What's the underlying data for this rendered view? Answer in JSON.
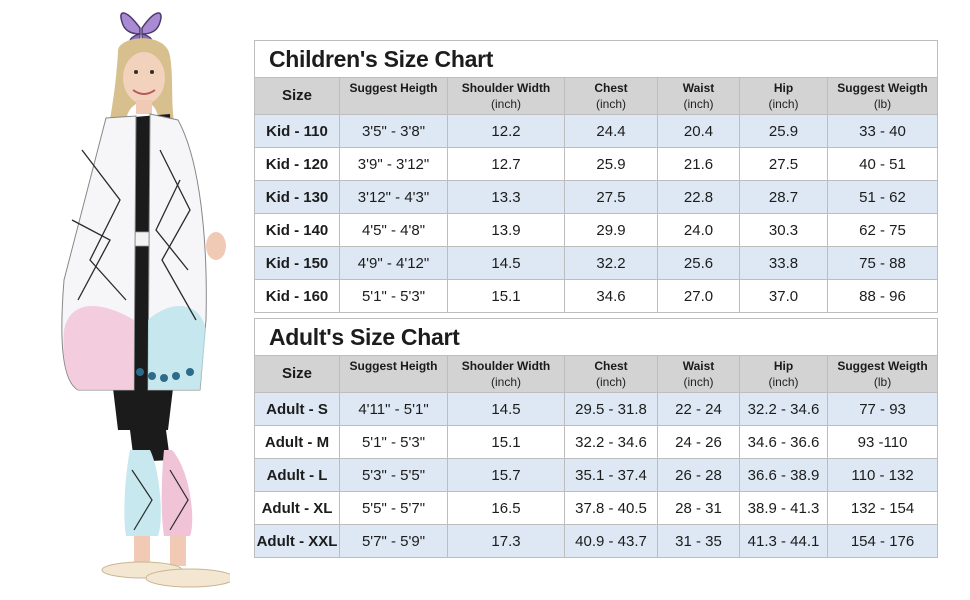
{
  "children": {
    "title": "Children's Size Chart",
    "headers": [
      {
        "label": "Size",
        "unit": ""
      },
      {
        "label": "Suggest Heigth",
        "unit": ""
      },
      {
        "label": "Shoulder Width",
        "unit": "(inch)"
      },
      {
        "label": "Chest",
        "unit": "(inch)"
      },
      {
        "label": "Waist",
        "unit": "(inch)"
      },
      {
        "label": "Hip",
        "unit": "(inch)"
      },
      {
        "label": "Suggest Weigth",
        "unit": "(lb)"
      }
    ],
    "rows": [
      [
        "Kid - 110",
        "3'5\" - 3'8\"",
        "12.2",
        "24.4",
        "20.4",
        "25.9",
        "33 - 40"
      ],
      [
        "Kid - 120",
        "3'9\" - 3'12\"",
        "12.7",
        "25.9",
        "21.6",
        "27.5",
        "40 - 51"
      ],
      [
        "Kid - 130",
        "3'12\" - 4'3\"",
        "13.3",
        "27.5",
        "22.8",
        "28.7",
        "51 - 62"
      ],
      [
        "Kid - 140",
        "4'5\" - 4'8\"",
        "13.9",
        "29.9",
        "24.0",
        "30.3",
        "62 - 75"
      ],
      [
        "Kid - 150",
        "4'9\" - 4'12\"",
        "14.5",
        "32.2",
        "25.6",
        "33.8",
        "75 - 88"
      ],
      [
        "Kid - 160",
        "5'1\" - 5'3\"",
        "15.1",
        "34.6",
        "27.0",
        "37.0",
        "88 - 96"
      ]
    ]
  },
  "adults": {
    "title": "Adult's Size Chart",
    "headers": [
      {
        "label": "Size",
        "unit": ""
      },
      {
        "label": "Suggest Heigth",
        "unit": ""
      },
      {
        "label": "Shoulder Width",
        "unit": "(inch)"
      },
      {
        "label": "Chest",
        "unit": "(inch)"
      },
      {
        "label": "Waist",
        "unit": "(inch)"
      },
      {
        "label": "Hip",
        "unit": "(inch)"
      },
      {
        "label": "Suggest Weigth",
        "unit": "(lb)"
      }
    ],
    "rows": [
      [
        "Adult - S",
        "4'11\" - 5'1\"",
        "14.5",
        "29.5 - 31.8",
        "22 - 24",
        "32.2 - 34.6",
        "77 - 93"
      ],
      [
        "Adult - M",
        "5'1\" - 5'3\"",
        "15.1",
        "32.2 - 34.6",
        "24 - 26",
        "34.6 - 36.6",
        "93 -110"
      ],
      [
        "Adult - L",
        "5'3\" - 5'5\"",
        "15.7",
        "35.1 - 37.4",
        "26 - 28",
        "36.6 - 38.9",
        "110 - 132"
      ],
      [
        "Adult - XL",
        "5'5\" - 5'7\"",
        "16.5",
        "37.8 - 40.5",
        "28 - 31",
        "38.9 - 41.3",
        "132 - 154"
      ],
      [
        "Adult - XXL",
        "5'7\" - 5'9\"",
        "17.3",
        "40.9 - 43.7",
        "31 - 35",
        "41.3 - 44.1",
        "154 - 176"
      ]
    ]
  },
  "colors": {
    "header_bg": "#d3d3d3",
    "row_alt_bg": "#dde8f4",
    "border": "#bdbdbd"
  },
  "model_image": {
    "icon": "butterfly-kimono-model-icon"
  }
}
